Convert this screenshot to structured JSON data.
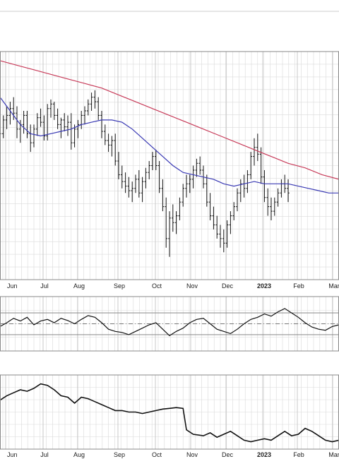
{
  "chart_data": [
    {
      "type": "ohlc",
      "panel": "price",
      "x_labels": [
        "Jun",
        "Jul",
        "Aug",
        "Sep",
        "Oct",
        "Nov",
        "Dec",
        "2023",
        "Feb",
        "Mar"
      ],
      "bold_labels": [
        "2023"
      ],
      "x_range": [
        0,
        100
      ],
      "y_range": [
        0,
        100
      ],
      "grid": true,
      "candles": [
        [
          0,
          65,
          68,
          60,
          64
        ],
        [
          1,
          64,
          72,
          62,
          70
        ],
        [
          2,
          70,
          76,
          66,
          72
        ],
        [
          3,
          72,
          78,
          68,
          75
        ],
        [
          4,
          75,
          80,
          70,
          73
        ],
        [
          5,
          73,
          76,
          62,
          66
        ],
        [
          6,
          66,
          70,
          60,
          68
        ],
        [
          7,
          68,
          74,
          64,
          72
        ],
        [
          8,
          72,
          74,
          62,
          64
        ],
        [
          9,
          64,
          68,
          56,
          60
        ],
        [
          10,
          60,
          68,
          58,
          66
        ],
        [
          11,
          66,
          73,
          63,
          71
        ],
        [
          12,
          71,
          75,
          67,
          69
        ],
        [
          13,
          69,
          72,
          61,
          63
        ],
        [
          14,
          63,
          77,
          61,
          75
        ],
        [
          15,
          75,
          79,
          71,
          77
        ],
        [
          16,
          77,
          78,
          70,
          72
        ],
        [
          17,
          72,
          75,
          66,
          68
        ],
        [
          18,
          68,
          71,
          62,
          70
        ],
        [
          19,
          70,
          73,
          65,
          67
        ],
        [
          20,
          67,
          72,
          63,
          69
        ],
        [
          21,
          69,
          73,
          57,
          60
        ],
        [
          22,
          60,
          68,
          58,
          66
        ],
        [
          23,
          66,
          70,
          62,
          68
        ],
        [
          24,
          68,
          74,
          66,
          72
        ],
        [
          25,
          72,
          76,
          68,
          74
        ],
        [
          26,
          74,
          79,
          72,
          77
        ],
        [
          27,
          77,
          82,
          74,
          80
        ],
        [
          28,
          80,
          83,
          75,
          78
        ],
        [
          29,
          78,
          80,
          70,
          72
        ],
        [
          30,
          72,
          74,
          62,
          65
        ],
        [
          31,
          65,
          68,
          59,
          61
        ],
        [
          32,
          61,
          64,
          56,
          59
        ],
        [
          33,
          59,
          63,
          54,
          61
        ],
        [
          34,
          61,
          64,
          50,
          52
        ],
        [
          35,
          52,
          56,
          44,
          46
        ],
        [
          36,
          46,
          50,
          40,
          43
        ],
        [
          37,
          43,
          47,
          38,
          41
        ],
        [
          38,
          41,
          45,
          36,
          39
        ],
        [
          39,
          39,
          43,
          34,
          40
        ],
        [
          40,
          40,
          46,
          38,
          44
        ],
        [
          41,
          44,
          48,
          36,
          38
        ],
        [
          42,
          38,
          45,
          34,
          43
        ],
        [
          43,
          43,
          49,
          40,
          47
        ],
        [
          44,
          47,
          52,
          44,
          50
        ],
        [
          45,
          50,
          56,
          48,
          54
        ],
        [
          46,
          54,
          57,
          48,
          50
        ],
        [
          47,
          50,
          52,
          38,
          40
        ],
        [
          48,
          40,
          44,
          30,
          32
        ],
        [
          49,
          32,
          36,
          14,
          18
        ],
        [
          50,
          18,
          30,
          10,
          27
        ],
        [
          51,
          27,
          33,
          21,
          25
        ],
        [
          52,
          25,
          30,
          20,
          28
        ],
        [
          53,
          28,
          36,
          26,
          34
        ],
        [
          54,
          34,
          42,
          32,
          40
        ],
        [
          55,
          40,
          46,
          36,
          42
        ],
        [
          56,
          42,
          46,
          38,
          44
        ],
        [
          57,
          44,
          50,
          40,
          48
        ],
        [
          58,
          48,
          53,
          45,
          51
        ],
        [
          59,
          51,
          54,
          46,
          48
        ],
        [
          60,
          48,
          50,
          40,
          42
        ],
        [
          61,
          42,
          46,
          32,
          34
        ],
        [
          62,
          34,
          38,
          26,
          28
        ],
        [
          63,
          28,
          32,
          22,
          24
        ],
        [
          64,
          24,
          28,
          18,
          20
        ],
        [
          65,
          20,
          24,
          14,
          18
        ],
        [
          66,
          18,
          22,
          12,
          16
        ],
        [
          67,
          16,
          26,
          14,
          24
        ],
        [
          68,
          24,
          30,
          20,
          28
        ],
        [
          69,
          28,
          34,
          26,
          32
        ],
        [
          70,
          32,
          40,
          30,
          38
        ],
        [
          71,
          38,
          44,
          34,
          42
        ],
        [
          72,
          42,
          46,
          36,
          40
        ],
        [
          73,
          40,
          48,
          38,
          46
        ],
        [
          74,
          46,
          56,
          44,
          54
        ],
        [
          75,
          54,
          62,
          50,
          58
        ],
        [
          76,
          58,
          64,
          52,
          55
        ],
        [
          77,
          55,
          58,
          42,
          45
        ],
        [
          78,
          45,
          48,
          34,
          36
        ],
        [
          79,
          36,
          40,
          28,
          32
        ],
        [
          80,
          32,
          36,
          26,
          30
        ],
        [
          81,
          30,
          36,
          28,
          34
        ],
        [
          82,
          34,
          40,
          32,
          38
        ],
        [
          83,
          38,
          44,
          36,
          42
        ],
        [
          84,
          42,
          46,
          38,
          40
        ],
        [
          85,
          40,
          44,
          34,
          38
        ]
      ],
      "ma_50": [
        [
          0,
          80
        ],
        [
          3,
          74
        ],
        [
          6,
          68
        ],
        [
          9,
          64
        ],
        [
          12,
          63
        ],
        [
          15,
          64
        ],
        [
          18,
          65
        ],
        [
          21,
          66
        ],
        [
          24,
          68
        ],
        [
          27,
          69
        ],
        [
          30,
          70
        ],
        [
          33,
          70
        ],
        [
          36,
          69
        ],
        [
          39,
          66
        ],
        [
          42,
          62
        ],
        [
          45,
          58
        ],
        [
          48,
          54
        ],
        [
          51,
          50
        ],
        [
          54,
          47
        ],
        [
          57,
          46
        ],
        [
          60,
          45
        ],
        [
          63,
          44
        ],
        [
          66,
          42
        ],
        [
          69,
          41
        ],
        [
          72,
          42
        ],
        [
          75,
          43
        ],
        [
          78,
          42
        ],
        [
          80,
          42
        ],
        [
          82,
          42
        ],
        [
          85,
          42
        ],
        [
          88,
          41
        ],
        [
          91,
          40
        ],
        [
          94,
          39
        ],
        [
          97,
          38
        ],
        [
          100,
          38
        ]
      ],
      "ma_200": [
        [
          0,
          96
        ],
        [
          5,
          94
        ],
        [
          10,
          92
        ],
        [
          15,
          90
        ],
        [
          20,
          88
        ],
        [
          25,
          86
        ],
        [
          30,
          84
        ],
        [
          35,
          81
        ],
        [
          40,
          78
        ],
        [
          45,
          75
        ],
        [
          50,
          72
        ],
        [
          55,
          69
        ],
        [
          60,
          66
        ],
        [
          65,
          63
        ],
        [
          70,
          60
        ],
        [
          75,
          57
        ],
        [
          80,
          54
        ],
        [
          85,
          51
        ],
        [
          90,
          49
        ],
        [
          95,
          46
        ],
        [
          100,
          44
        ]
      ],
      "colors": {
        "bars": "#111111",
        "ma_50": "#3a3ab4",
        "ma_200": "#c83c5a",
        "grid": "#dadada",
        "frame": "#888888"
      }
    },
    {
      "type": "line",
      "panel": "oscillator",
      "x_range": [
        0,
        100
      ],
      "y_range": [
        0,
        100
      ],
      "grid": true,
      "reference_lines": [
        70,
        50,
        30
      ],
      "series": [
        {
          "values": [
            [
              0,
              45
            ],
            [
              2,
              52
            ],
            [
              4,
              60
            ],
            [
              6,
              55
            ],
            [
              8,
              62
            ],
            [
              10,
              48
            ],
            [
              12,
              55
            ],
            [
              14,
              58
            ],
            [
              16,
              52
            ],
            [
              18,
              60
            ],
            [
              20,
              56
            ],
            [
              22,
              50
            ],
            [
              24,
              58
            ],
            [
              26,
              65
            ],
            [
              28,
              62
            ],
            [
              30,
              52
            ],
            [
              32,
              40
            ],
            [
              34,
              36
            ],
            [
              36,
              34
            ],
            [
              38,
              30
            ],
            [
              40,
              36
            ],
            [
              42,
              42
            ],
            [
              44,
              48
            ],
            [
              46,
              52
            ],
            [
              48,
              40
            ],
            [
              50,
              28
            ],
            [
              52,
              36
            ],
            [
              54,
              42
            ],
            [
              56,
              52
            ],
            [
              58,
              58
            ],
            [
              60,
              60
            ],
            [
              62,
              50
            ],
            [
              64,
              40
            ],
            [
              66,
              36
            ],
            [
              68,
              32
            ],
            [
              70,
              40
            ],
            [
              72,
              50
            ],
            [
              74,
              58
            ],
            [
              76,
              62
            ],
            [
              78,
              68
            ],
            [
              80,
              64
            ],
            [
              82,
              72
            ],
            [
              84,
              78
            ],
            [
              86,
              70
            ],
            [
              88,
              62
            ],
            [
              90,
              52
            ],
            [
              92,
              44
            ],
            [
              94,
              40
            ],
            [
              96,
              38
            ],
            [
              98,
              45
            ],
            [
              100,
              48
            ]
          ]
        }
      ],
      "colors": {
        "line": "#111111",
        "reference": "#777777",
        "grid": "#dadada",
        "frame": "#888888"
      }
    },
    {
      "type": "line",
      "panel": "relative_strength",
      "x_labels": [
        "Jun",
        "Jul",
        "Aug",
        "Sep",
        "Oct",
        "Nov",
        "Dec",
        "2023",
        "Feb",
        "Mar"
      ],
      "bold_labels": [
        "2023"
      ],
      "x_range": [
        0,
        100
      ],
      "y_range": [
        0,
        100
      ],
      "grid": true,
      "series": [
        {
          "values": [
            [
              0,
              66
            ],
            [
              2,
              72
            ],
            [
              4,
              76
            ],
            [
              6,
              80
            ],
            [
              8,
              78
            ],
            [
              10,
              82
            ],
            [
              12,
              88
            ],
            [
              14,
              86
            ],
            [
              16,
              80
            ],
            [
              18,
              72
            ],
            [
              20,
              70
            ],
            [
              22,
              62
            ],
            [
              24,
              70
            ],
            [
              26,
              68
            ],
            [
              28,
              64
            ],
            [
              30,
              60
            ],
            [
              32,
              56
            ],
            [
              34,
              52
            ],
            [
              36,
              52
            ],
            [
              38,
              50
            ],
            [
              40,
              50
            ],
            [
              42,
              48
            ],
            [
              44,
              50
            ],
            [
              46,
              52
            ],
            [
              48,
              54
            ],
            [
              50,
              55
            ],
            [
              52,
              56
            ],
            [
              54,
              55
            ],
            [
              55,
              26
            ],
            [
              57,
              20
            ],
            [
              60,
              18
            ],
            [
              62,
              22
            ],
            [
              64,
              16
            ],
            [
              66,
              20
            ],
            [
              68,
              24
            ],
            [
              70,
              18
            ],
            [
              72,
              12
            ],
            [
              74,
              10
            ],
            [
              76,
              12
            ],
            [
              78,
              14
            ],
            [
              80,
              12
            ],
            [
              82,
              18
            ],
            [
              84,
              24
            ],
            [
              86,
              18
            ],
            [
              88,
              20
            ],
            [
              90,
              28
            ],
            [
              92,
              24
            ],
            [
              94,
              18
            ],
            [
              96,
              12
            ],
            [
              98,
              10
            ],
            [
              100,
              12
            ]
          ]
        }
      ],
      "colors": {
        "line": "#111111",
        "grid": "#dadada",
        "frame": "#888888"
      }
    }
  ]
}
